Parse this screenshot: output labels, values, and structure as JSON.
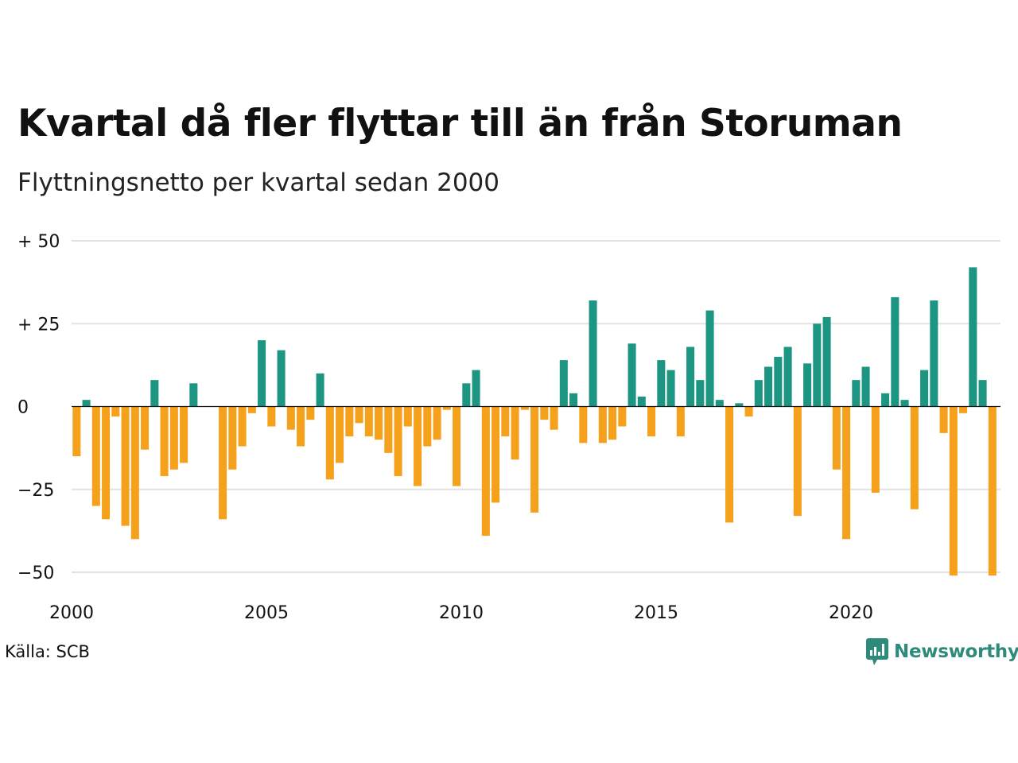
{
  "chart_data": {
    "type": "bar",
    "title": "Kvartal då fler flyttar till än från Storuman",
    "subtitle": "Flyttningsnetto per kvartal sedan 2000",
    "x_tick_labels": [
      "2000",
      "2005",
      "2010",
      "2015",
      "2020"
    ],
    "y_ticks": [
      50,
      25,
      0,
      -25,
      -50
    ],
    "y_tick_labels": [
      "+ 50",
      "+ 25",
      "0",
      "−25",
      "−50"
    ],
    "ylim": [
      -50,
      50
    ],
    "grid": true,
    "start_year": 2000,
    "values": [
      -15,
      2,
      -30,
      -34,
      -3,
      -36,
      -40,
      -13,
      8,
      -21,
      -19,
      -17,
      7,
      0,
      0,
      -34,
      -19,
      -12,
      -2,
      20,
      -6,
      17,
      -7,
      -12,
      -4,
      10,
      -22,
      -17,
      -9,
      -5,
      -9,
      -10,
      -14,
      -21,
      -6,
      -24,
      -12,
      -10,
      -1,
      -24,
      7,
      11,
      -39,
      -29,
      -9,
      -16,
      -1,
      -32,
      -4,
      -7,
      14,
      4,
      -11,
      32,
      -11,
      -10,
      -6,
      19,
      3,
      -9,
      14,
      11,
      -9,
      18,
      8,
      29,
      2,
      -35,
      1,
      -3,
      8,
      12,
      15,
      18,
      -33,
      13,
      25,
      27,
      -19,
      -40,
      8,
      12,
      -26,
      4,
      33,
      2,
      -31,
      11,
      32,
      -8,
      -51,
      -2,
      42,
      8,
      -51
    ],
    "colors": {
      "positive": "#1c9682",
      "negative": "#f5a11c"
    }
  },
  "source_label": "Källa: SCB",
  "brand": {
    "name": "Newsworthy",
    "icon": "newsworthy-logo-icon",
    "color": "#2e8a7b"
  }
}
